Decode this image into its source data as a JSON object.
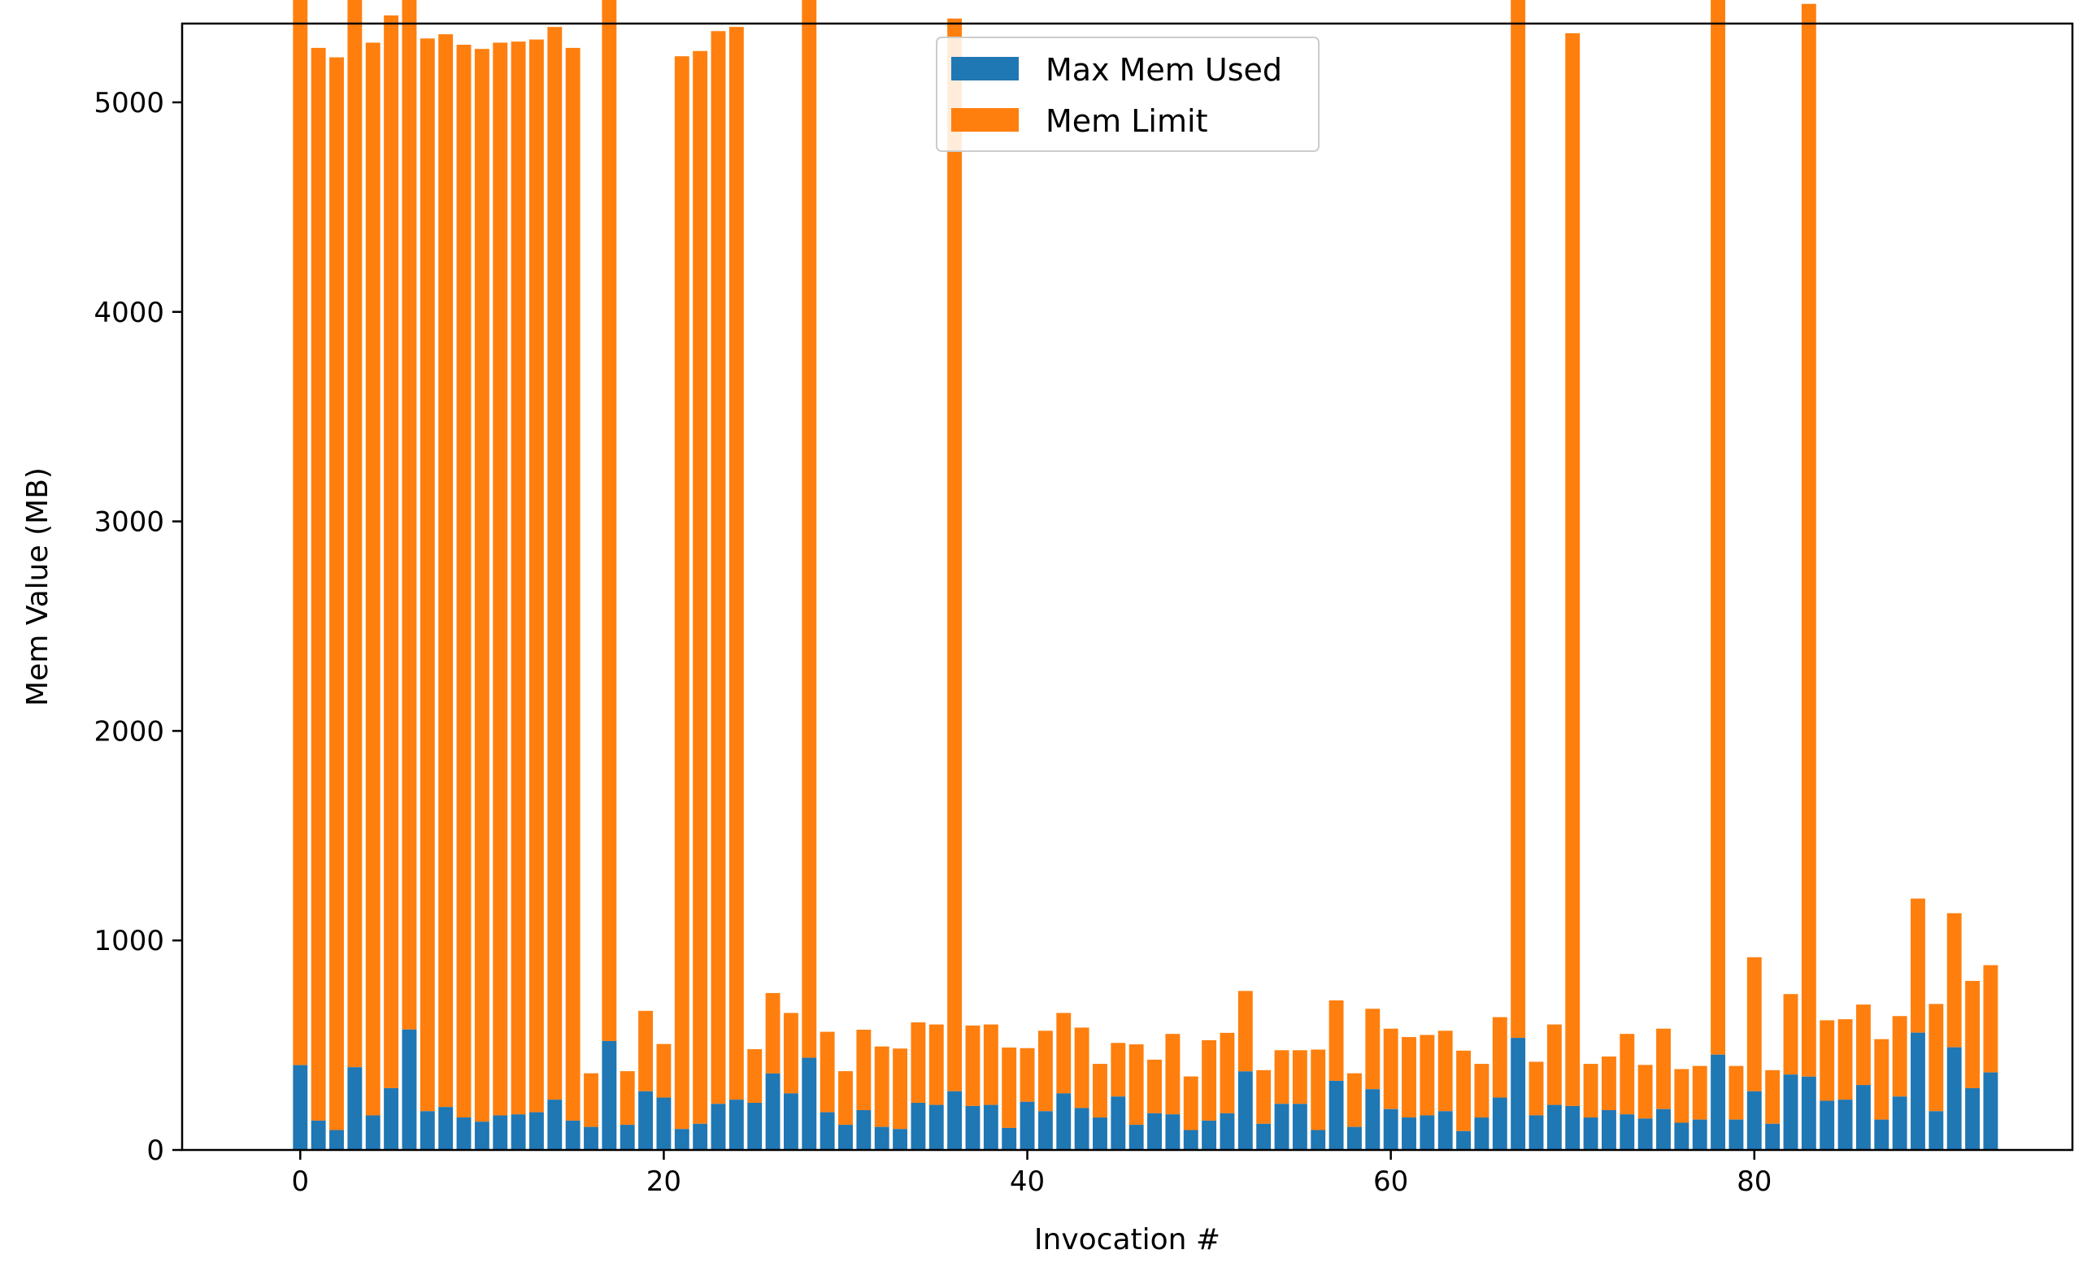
{
  "chart_data": {
    "type": "bar",
    "stacked": true,
    "xlabel": "Invocation #",
    "ylabel": "Mem Value (MB)",
    "xlim": [
      -6.5,
      97.5
    ],
    "ylim": [
      0,
      5376
    ],
    "xticks": [
      0,
      20,
      40,
      60,
      80
    ],
    "yticks": [
      0,
      1000,
      2000,
      3000,
      4000,
      5000
    ],
    "grid": false,
    "legend_position": "top-center",
    "x": [
      0,
      1,
      2,
      3,
      4,
      5,
      6,
      7,
      8,
      9,
      10,
      11,
      12,
      13,
      14,
      15,
      16,
      17,
      18,
      19,
      20,
      21,
      22,
      23,
      24,
      25,
      26,
      27,
      28,
      29,
      30,
      31,
      32,
      33,
      34,
      35,
      36,
      37,
      38,
      39,
      40,
      41,
      42,
      43,
      44,
      45,
      46,
      47,
      48,
      49,
      50,
      51,
      52,
      53,
      54,
      55,
      56,
      57,
      58,
      59,
      60,
      61,
      62,
      63,
      64,
      65,
      66,
      67,
      68,
      69,
      70,
      71,
      72,
      73,
      74,
      75,
      76,
      77,
      78,
      79,
      80,
      81,
      82,
      83,
      84,
      85,
      86,
      87,
      88,
      89,
      90,
      91,
      92,
      93
    ],
    "series": [
      {
        "name": "Max Mem Used",
        "color": "#1f77b4",
        "values": [
          405,
          140,
          95,
          395,
          165,
          295,
          575,
          185,
          205,
          155,
          135,
          165,
          170,
          180,
          240,
          140,
          110,
          520,
          120,
          280,
          250,
          100,
          125,
          220,
          240,
          225,
          365,
          270,
          440,
          180,
          120,
          190,
          110,
          100,
          225,
          215,
          280,
          210,
          215,
          105,
          230,
          185,
          270,
          200,
          155,
          255,
          120,
          175,
          170,
          95,
          140,
          175,
          375,
          125,
          220,
          220,
          95,
          330,
          110,
          290,
          195,
          155,
          165,
          185,
          90,
          155,
          250,
          535,
          165,
          215,
          210,
          155,
          190,
          170,
          150,
          195,
          130,
          145,
          455,
          145,
          280,
          125,
          360,
          350,
          235,
          240,
          310,
          145,
          255,
          560,
          185,
          490,
          295,
          370
        ]
      },
      {
        "name": "Mem Limit",
        "color": "#ff7f0e",
        "values": [
          5120,
          5120,
          5120,
          5120,
          5120,
          5120,
          5120,
          5120,
          5120,
          5120,
          5120,
          5120,
          5120,
          5120,
          5120,
          5120,
          256,
          5120,
          256,
          384,
          256,
          5120,
          5120,
          5120,
          5120,
          256,
          384,
          384,
          5120,
          384,
          256,
          384,
          384,
          384,
          384,
          384,
          5120,
          384,
          384,
          384,
          256,
          384,
          384,
          384,
          256,
          256,
          384,
          256,
          384,
          256,
          384,
          384,
          384,
          256,
          256,
          256,
          384,
          384,
          256,
          384,
          384,
          384,
          384,
          384,
          384,
          256,
          384,
          5120,
          256,
          384,
          5120,
          256,
          256,
          384,
          256,
          384,
          256,
          256,
          5120,
          256,
          640,
          256,
          384,
          5120,
          384,
          384,
          384,
          384,
          384,
          640,
          512,
          640,
          512,
          512
        ]
      }
    ]
  }
}
